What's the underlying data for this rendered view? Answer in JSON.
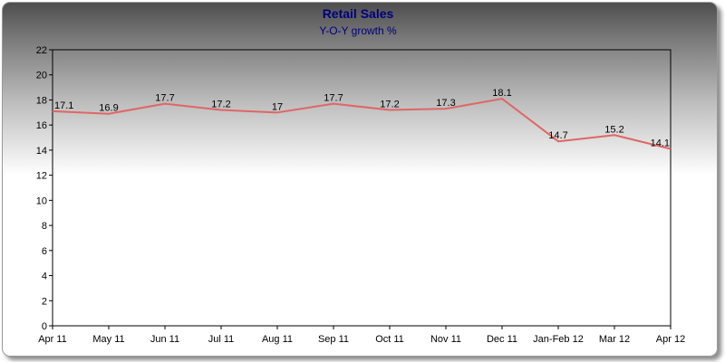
{
  "chart_data": {
    "type": "line",
    "title": "Retail Sales",
    "subtitle": "Y-O-Y growth %",
    "xlabel": "",
    "ylabel": "",
    "ylim": [
      0,
      22
    ],
    "yticks": [
      0,
      2,
      4,
      6,
      8,
      10,
      12,
      14,
      16,
      18,
      20,
      22
    ],
    "grid": false,
    "categories": [
      "Apr 11",
      "May 11",
      "Jun 11",
      "Jul 11",
      "Aug 11",
      "Sep 11",
      "Oct 11",
      "Nov 11",
      "Dec 11",
      "Jan-Feb 12",
      "Mar 12",
      "Apr 12"
    ],
    "series": [
      {
        "values": [
          17.1,
          16.9,
          17.7,
          17.2,
          17,
          17.7,
          17.2,
          17.3,
          18.1,
          14.7,
          15.2,
          14.1
        ],
        "color": "#e06666"
      }
    ]
  }
}
